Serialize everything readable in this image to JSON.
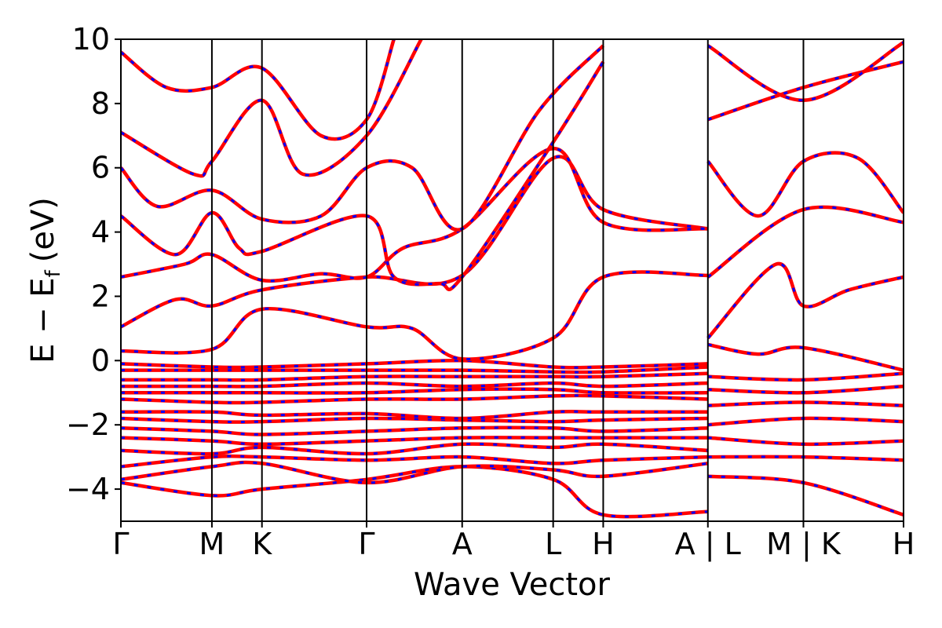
{
  "chart_data": {
    "type": "line",
    "title": "",
    "xlabel": "Wave Vector",
    "ylabel": "E − E",
    "ylabel_sub": "f",
    "ylabel_unit": "(eV)",
    "ylim": [
      -5,
      10
    ],
    "yticks": [
      -4,
      -2,
      0,
      2,
      4,
      6,
      8,
      10
    ],
    "ytick_labels": [
      "−4",
      "−2",
      "0",
      "2",
      "4",
      "6",
      "8",
      "10"
    ],
    "xlim": [
      0,
      8.6
    ],
    "kpoint_positions": [
      0,
      1.0,
      1.55,
      2.7,
      3.75,
      4.75,
      5.3,
      6.45,
      7.5,
      8.6
    ],
    "kpoint_labels": [
      "Γ",
      "M",
      "K",
      "Γ",
      "A",
      "L",
      "H",
      "A | L",
      "M | K",
      "H"
    ],
    "grid": false,
    "legend": "none",
    "series": [
      {
        "color": "#ff0000",
        "style": "solid"
      },
      {
        "color": "#0000ff",
        "style": "dashed"
      }
    ],
    "bands": [
      {
        "x": [
          0,
          1.0,
          1.55,
          2.7,
          3.75,
          4.75,
          5.3,
          6.45
        ],
        "y": [
          -3.8,
          -4.2,
          -4.0,
          -3.7,
          -3.3,
          -3.7,
          -4.8,
          -4.7
        ]
      },
      {
        "x": [
          0,
          1.0,
          1.55,
          2.7,
          3.75,
          4.75,
          5.3,
          6.45
        ],
        "y": [
          -3.7,
          -3.3,
          -3.2,
          -3.8,
          -3.3,
          -3.4,
          -3.6,
          -3.2
        ]
      },
      {
        "x": [
          0,
          1.0,
          1.55,
          2.7,
          3.75,
          4.75,
          5.3,
          6.45
        ],
        "y": [
          -3.3,
          -3.0,
          -3.0,
          -3.1,
          -3.0,
          -3.2,
          -3.1,
          -3.0
        ]
      },
      {
        "x": [
          0,
          1.0,
          1.55,
          2.7,
          3.75,
          4.75,
          5.3,
          6.45
        ],
        "y": [
          -2.8,
          -2.9,
          -2.7,
          -2.9,
          -2.6,
          -2.7,
          -2.6,
          -2.8
        ]
      },
      {
        "x": [
          0,
          1.0,
          1.55,
          2.7,
          3.75,
          4.75,
          5.3,
          6.45
        ],
        "y": [
          -2.4,
          -2.5,
          -2.6,
          -2.5,
          -2.4,
          -2.4,
          -2.4,
          -2.4
        ]
      },
      {
        "x": [
          0,
          1.0,
          1.55,
          2.7,
          3.75,
          4.75,
          5.3,
          6.45
        ],
        "y": [
          -2.1,
          -2.2,
          -2.3,
          -2.2,
          -2.1,
          -2.1,
          -2.2,
          -2.1
        ]
      },
      {
        "x": [
          0,
          1.0,
          1.55,
          2.7,
          3.75,
          4.75,
          5.3,
          6.45
        ],
        "y": [
          -1.8,
          -1.9,
          -1.9,
          -1.8,
          -1.85,
          -1.9,
          -1.85,
          -1.8
        ]
      },
      {
        "x": [
          0,
          1.0,
          1.55,
          2.7,
          3.75,
          4.75,
          5.3,
          6.45
        ],
        "y": [
          -1.6,
          -1.6,
          -1.7,
          -1.65,
          -1.8,
          -1.6,
          -1.6,
          -1.6
        ]
      },
      {
        "x": [
          0,
          1.0,
          1.55,
          2.7,
          3.75,
          4.75,
          5.3,
          6.45
        ],
        "y": [
          -1.2,
          -1.3,
          -1.3,
          -1.2,
          -1.2,
          -1.1,
          -1.1,
          -1.2
        ]
      },
      {
        "x": [
          0,
          1.0,
          1.55,
          2.7,
          3.75,
          4.75,
          5.3,
          6.45
        ],
        "y": [
          -1.0,
          -1.0,
          -1.0,
          -1.0,
          -0.9,
          -0.9,
          -1.0,
          -1.0
        ]
      },
      {
        "x": [
          0,
          1.0,
          1.55,
          2.7,
          3.75,
          4.75,
          5.3,
          6.45
        ],
        "y": [
          -0.8,
          -0.8,
          -0.8,
          -0.7,
          -0.8,
          -0.7,
          -0.8,
          -0.7
        ]
      },
      {
        "x": [
          0,
          1.0,
          1.55,
          2.7,
          3.75,
          4.75,
          5.3,
          6.45
        ],
        "y": [
          -0.6,
          -0.6,
          -0.6,
          -0.5,
          -0.5,
          -0.5,
          -0.5,
          -0.4
        ]
      },
      {
        "x": [
          0,
          1.0,
          1.55,
          2.7,
          3.75,
          4.75,
          5.3,
          6.45
        ],
        "y": [
          -0.3,
          -0.3,
          -0.3,
          -0.3,
          -0.3,
          -0.35,
          -0.35,
          -0.2
        ]
      },
      {
        "x": [
          0,
          1.0,
          1.55,
          2.7,
          3.75,
          4.75,
          5.3,
          6.45
        ],
        "y": [
          -0.1,
          -0.2,
          -0.2,
          -0.1,
          0.0,
          -0.2,
          -0.2,
          -0.1
        ]
      },
      {
        "x": [
          0,
          1.0,
          1.55,
          2.7,
          3.2,
          3.75,
          4.75,
          5.3,
          6.45
        ],
        "y": [
          0.3,
          0.35,
          1.6,
          1.05,
          1.0,
          0.05,
          0.7,
          2.6,
          2.65
        ]
      },
      {
        "x": [
          0,
          0.6,
          1.0,
          1.55,
          2.7,
          3.75,
          4.75,
          5.3,
          6.45
        ],
        "y": [
          1.05,
          1.9,
          1.7,
          2.2,
          2.6,
          2.65,
          6.3,
          4.7,
          4.1
        ]
      },
      {
        "x": [
          0,
          0.7,
          1.0,
          1.55,
          2.2,
          2.7,
          3.1,
          3.75,
          4.75,
          5.3,
          6.45
        ],
        "y": [
          2.6,
          3.0,
          3.3,
          2.5,
          2.7,
          2.6,
          3.5,
          4.1,
          6.6,
          4.3,
          4.1
        ]
      },
      {
        "x": [
          0,
          0.6,
          1.0,
          1.3,
          1.55,
          2.7,
          3.0,
          3.5,
          3.75,
          4.75,
          5.3
        ],
        "y": [
          4.5,
          3.3,
          4.6,
          3.5,
          3.4,
          4.5,
          2.6,
          2.4,
          2.6,
          6.8,
          9.3
        ]
      },
      {
        "x": [
          0,
          0.4,
          1.0,
          1.55,
          2.2,
          2.7,
          3.2,
          3.75,
          4.6,
          5.3
        ],
        "y": [
          6.0,
          4.8,
          5.3,
          4.4,
          4.5,
          6.0,
          6.0,
          4.1,
          7.8,
          9.8
        ]
      },
      {
        "x": [
          0,
          0.8,
          1.0,
          1.55,
          2.0,
          2.7,
          3.3
        ],
        "y": [
          7.1,
          5.8,
          6.2,
          8.1,
          5.8,
          7.0,
          10.0
        ]
      },
      {
        "x": [
          0,
          0.5,
          1.0,
          1.55,
          2.2,
          2.7,
          3.0
        ],
        "y": [
          9.6,
          8.5,
          8.5,
          9.1,
          7.0,
          7.5,
          10.0
        ]
      },
      {
        "x": [
          6.45,
          7.5,
          8.6
        ],
        "y": [
          -3.6,
          -3.8,
          -4.8
        ]
      },
      {
        "x": [
          6.45,
          7.5,
          8.6
        ],
        "y": [
          -3.0,
          -3.0,
          -3.1
        ]
      },
      {
        "x": [
          6.45,
          7.5,
          8.6
        ],
        "y": [
          -2.4,
          -2.6,
          -2.5
        ]
      },
      {
        "x": [
          6.45,
          7.5,
          8.6
        ],
        "y": [
          -2.0,
          -1.8,
          -1.9
        ]
      },
      {
        "x": [
          6.45,
          7.5,
          8.6
        ],
        "y": [
          -1.4,
          -1.3,
          -1.4
        ]
      },
      {
        "x": [
          6.45,
          7.5,
          8.6
        ],
        "y": [
          -0.9,
          -1.0,
          -0.8
        ]
      },
      {
        "x": [
          6.45,
          7.5,
          8.6
        ],
        "y": [
          -0.5,
          -0.6,
          -0.4
        ]
      },
      {
        "x": [
          6.45,
          7.0,
          7.5,
          8.6
        ],
        "y": [
          0.5,
          0.2,
          0.4,
          -0.3
        ]
      },
      {
        "x": [
          6.45,
          7.2,
          7.5,
          8.0,
          8.6
        ],
        "y": [
          0.7,
          3.0,
          1.7,
          2.2,
          2.6
        ]
      },
      {
        "x": [
          6.45,
          7.5,
          8.6
        ],
        "y": [
          2.6,
          4.7,
          4.3
        ]
      },
      {
        "x": [
          6.45,
          7.0,
          7.5,
          8.1,
          8.6
        ],
        "y": [
          6.2,
          4.5,
          6.2,
          6.3,
          4.6
        ]
      },
      {
        "x": [
          6.45,
          7.5,
          8.6
        ],
        "y": [
          7.5,
          8.5,
          9.3
        ]
      },
      {
        "x": [
          6.45,
          7.5,
          8.6
        ],
        "y": [
          9.8,
          8.1,
          9.9
        ]
      }
    ]
  }
}
